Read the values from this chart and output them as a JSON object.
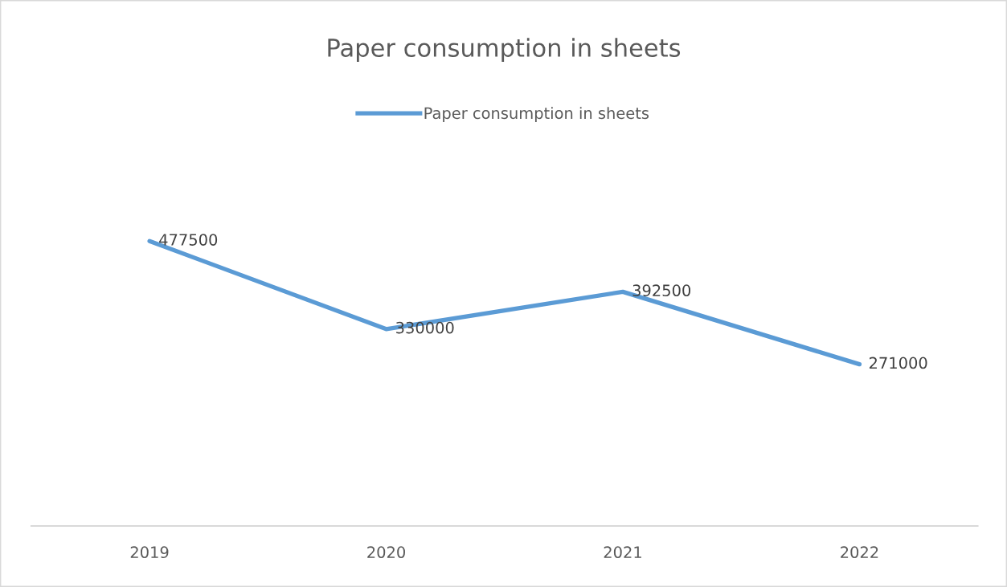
{
  "chart_data": {
    "type": "line",
    "title": "Paper consumption in sheets",
    "categories": [
      "2019",
      "2020",
      "2021",
      "2022"
    ],
    "series": [
      {
        "name": "Paper consumption in sheets",
        "color": "#5b9bd5",
        "values": [
          477500,
          330000,
          392500,
          271000
        ]
      }
    ],
    "tick_labels": "x",
    "data_labels": true,
    "legend": "top",
    "grid": false,
    "marker": "none",
    "line_style": "solid"
  }
}
